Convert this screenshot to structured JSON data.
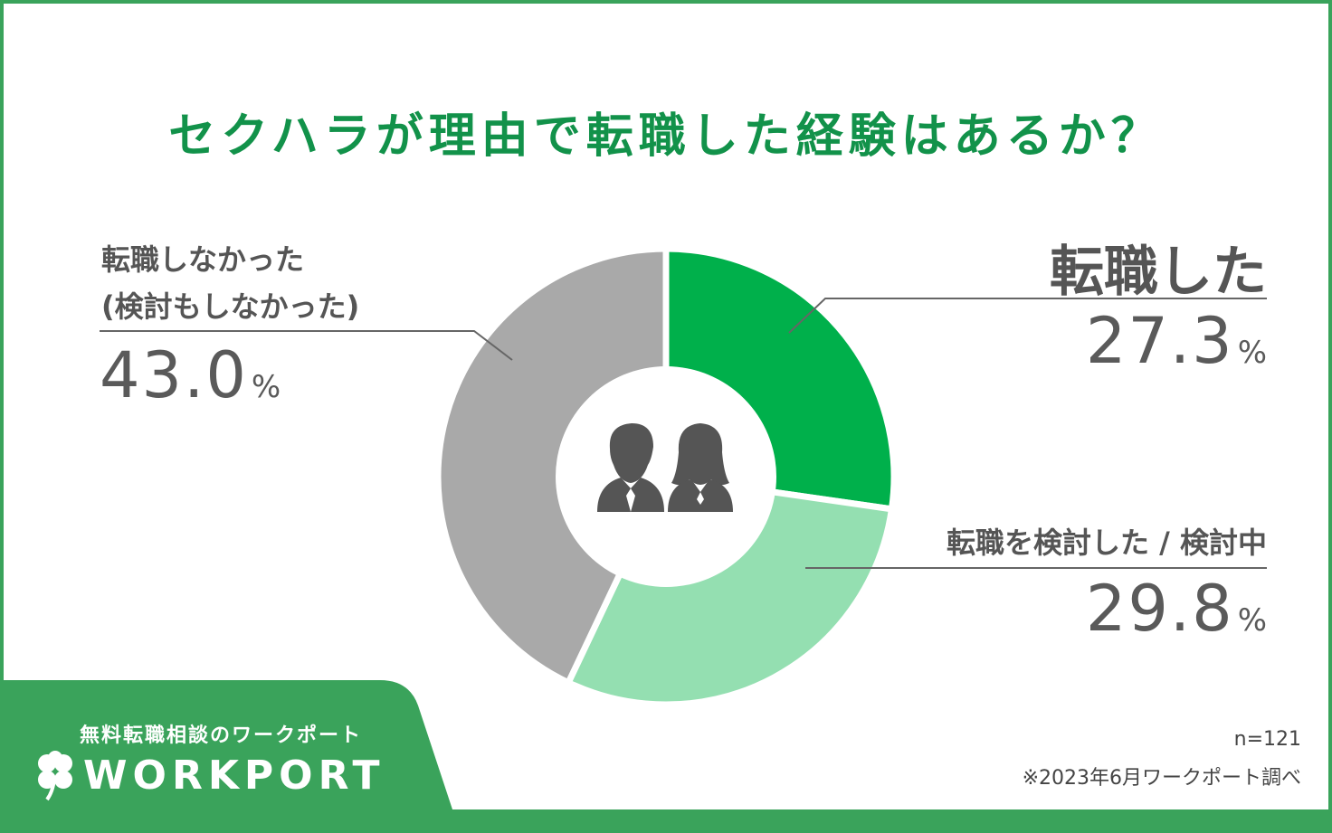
{
  "title": "セクハラが理由で転職した経験はあるか？",
  "chart_data": {
    "type": "pie",
    "style": "donut",
    "slices": [
      {
        "label": "転職した",
        "value": 27.3,
        "color": "#00b04b"
      },
      {
        "label": "転職を検討した / 検討中",
        "value": 29.8,
        "color": "#94dfb1"
      },
      {
        "label_line1": "転職しなかった",
        "label_line2": "(検討もしなかった)",
        "value": 43.0,
        "color": "#a9a9a9"
      }
    ],
    "percent_labels": [
      "27.3",
      "29.8",
      "43.0"
    ],
    "percent_sign": "%",
    "center_icon": "businesspeople-icon"
  },
  "notes": {
    "sample": "n=121",
    "source": "※2023年6月ワークポート調べ"
  },
  "brand": {
    "tagline": "無料転職相談のワークポート",
    "name": "WORKPORT",
    "logo_icon": "clover-icon",
    "color": "#3aa35b"
  }
}
